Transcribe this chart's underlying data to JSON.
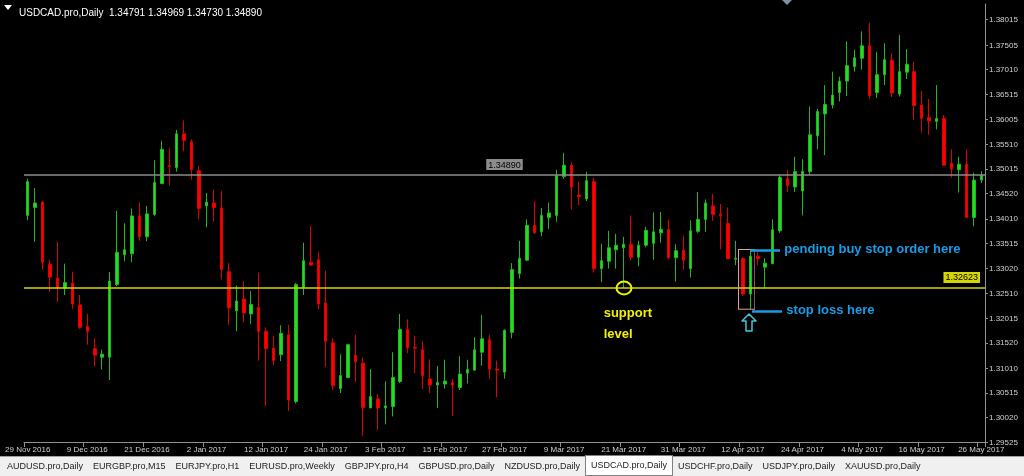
{
  "chart_data": {
    "type": "candlestick",
    "title": "USDCAD.pro,Daily  1.34791 1.34969 1.34730 1.34890",
    "categories": [
      "29 Nov 2016",
      null,
      null,
      null,
      null,
      null,
      null,
      null,
      "9 Dec 2016",
      null,
      null,
      null,
      null,
      null,
      null,
      null,
      "21 Dec 2016",
      null,
      null,
      null,
      null,
      null,
      null,
      null,
      "2 Jan 2017",
      null,
      null,
      null,
      null,
      null,
      null,
      null,
      "12 Jan 2017",
      null,
      null,
      null,
      null,
      null,
      null,
      null,
      "24 Jan 2017",
      null,
      null,
      null,
      null,
      null,
      null,
      null,
      "3 Feb 2017",
      null,
      null,
      null,
      null,
      null,
      null,
      null,
      "15 Feb 2017",
      null,
      null,
      null,
      null,
      null,
      null,
      null,
      "27 Feb 2017",
      null,
      null,
      null,
      null,
      null,
      null,
      null,
      "9 Mar 2017",
      null,
      null,
      null,
      null,
      null,
      null,
      null,
      "21 Mar 2017",
      null,
      null,
      null,
      null,
      null,
      null,
      null,
      "31 Mar 2017",
      null,
      null,
      null,
      null,
      null,
      null,
      null,
      "12 Apr 2017",
      null,
      null,
      null,
      null,
      null,
      null,
      null,
      "24 Apr 2017",
      null,
      null,
      null,
      null,
      null,
      null,
      null,
      "4 May 2017",
      null,
      null,
      null,
      null,
      null,
      null,
      null,
      "16 May 2017",
      null,
      null,
      null,
      null,
      null,
      null,
      null,
      "26 May 2017"
    ],
    "ohlc": [
      [
        1.3408,
        1.3482,
        1.3398,
        1.3476
      ],
      [
        1.3424,
        1.3463,
        1.3355,
        1.3433
      ],
      [
        1.3435,
        1.3437,
        1.3299,
        1.3314
      ],
      [
        1.331,
        1.3319,
        1.3254,
        1.3284
      ],
      [
        1.3282,
        1.3355,
        1.3234,
        1.3262
      ],
      [
        1.3262,
        1.3311,
        1.3248,
        1.3273
      ],
      [
        1.3272,
        1.3295,
        1.322,
        1.323
      ],
      [
        1.3228,
        1.3248,
        1.318,
        1.3183
      ],
      [
        1.3185,
        1.321,
        1.3148,
        1.3175
      ],
      [
        1.314,
        1.3161,
        1.3104,
        1.3127
      ],
      [
        1.3123,
        1.3138,
        1.3098,
        1.3129
      ],
      [
        1.3123,
        1.3294,
        1.3077,
        1.3276
      ],
      [
        1.3269,
        1.3417,
        1.3266,
        1.3334
      ],
      [
        1.3329,
        1.3392,
        1.3316,
        1.3339
      ],
      [
        1.3331,
        1.3422,
        1.3314,
        1.3407
      ],
      [
        1.3407,
        1.3434,
        1.3357,
        1.3365
      ],
      [
        1.3365,
        1.3427,
        1.3356,
        1.3411
      ],
      [
        1.341,
        1.3519,
        1.3407,
        1.3474
      ],
      [
        1.3472,
        1.3558,
        1.3471,
        1.3541
      ],
      [
        1.3508,
        1.3543,
        1.3468,
        1.3506
      ],
      [
        1.3504,
        1.358,
        1.3496,
        1.3572
      ],
      [
        1.3572,
        1.3599,
        1.3537,
        1.3559
      ],
      [
        1.3556,
        1.3561,
        1.348,
        1.35
      ],
      [
        1.3498,
        1.3507,
        1.34,
        1.3422
      ],
      [
        1.3427,
        1.3453,
        1.3384,
        1.3435
      ],
      [
        1.3433,
        1.346,
        1.3396,
        1.3424
      ],
      [
        1.3423,
        1.3457,
        1.3279,
        1.3299
      ],
      [
        1.3295,
        1.3312,
        1.3188,
        1.3222
      ],
      [
        1.3216,
        1.3267,
        1.3175,
        1.3236
      ],
      [
        1.324,
        1.3276,
        1.3193,
        1.3212
      ],
      [
        1.321,
        1.3256,
        1.319,
        1.3229
      ],
      [
        1.3223,
        1.3293,
        1.3116,
        1.3175
      ],
      [
        1.3175,
        1.3183,
        1.3025,
        1.314
      ],
      [
        1.3141,
        1.3166,
        1.3107,
        1.3116
      ],
      [
        1.3128,
        1.3187,
        1.3115,
        1.3171
      ],
      [
        1.3168,
        1.3188,
        1.3015,
        1.3037
      ],
      [
        1.3034,
        1.3272,
        1.303,
        1.3269
      ],
      [
        1.3263,
        1.3353,
        1.3248,
        1.3317
      ],
      [
        1.3314,
        1.3387,
        1.3308,
        1.3308
      ],
      [
        1.3319,
        1.3334,
        1.3219,
        1.323
      ],
      [
        1.3232,
        1.3297,
        1.3103,
        1.3155
      ],
      [
        1.3152,
        1.3161,
        1.3057,
        1.3066
      ],
      [
        1.306,
        1.3129,
        1.3051,
        1.3086
      ],
      [
        1.3082,
        1.315,
        1.3081,
        1.3148
      ],
      [
        1.3127,
        1.3168,
        1.3074,
        1.3114
      ],
      [
        1.3111,
        1.3123,
        1.2965,
        1.3022
      ],
      [
        1.3021,
        1.3099,
        1.3021,
        1.3044
      ],
      [
        1.3039,
        1.3049,
        1.2977,
        1.3021
      ],
      [
        1.3021,
        1.3074,
        1.2988,
        1.3025
      ],
      [
        1.3024,
        1.3133,
        1.3004,
        1.3082
      ],
      [
        1.3074,
        1.321,
        1.3071,
        1.3179
      ],
      [
        1.3179,
        1.3199,
        1.3131,
        1.3142
      ],
      [
        1.3143,
        1.3166,
        1.3091,
        1.3141
      ],
      [
        1.3138,
        1.3155,
        1.3059,
        1.3086
      ],
      [
        1.3079,
        1.3119,
        1.3051,
        1.3067
      ],
      [
        1.3067,
        1.3105,
        1.3021,
        1.3072
      ],
      [
        1.3069,
        1.3118,
        1.306,
        1.3075
      ],
      [
        1.3072,
        1.3079,
        1.3005,
        1.3067
      ],
      [
        1.3062,
        1.3125,
        1.3057,
        1.3089
      ],
      [
        1.3091,
        1.3118,
        1.307,
        1.3098
      ],
      [
        1.3097,
        1.3163,
        1.3096,
        1.3138
      ],
      [
        1.3133,
        1.3208,
        1.3106,
        1.316
      ],
      [
        1.3158,
        1.3168,
        1.3079,
        1.3099
      ],
      [
        1.3099,
        1.3116,
        1.3042,
        1.3097
      ],
      [
        1.3093,
        1.3179,
        1.308,
        1.3177
      ],
      [
        1.3173,
        1.3312,
        1.3161,
        1.3299
      ],
      [
        1.3291,
        1.3357,
        1.3281,
        1.3322
      ],
      [
        1.3318,
        1.34,
        1.3316,
        1.3388
      ],
      [
        1.3388,
        1.3437,
        1.3371,
        1.3373
      ],
      [
        1.3375,
        1.3423,
        1.3366,
        1.3408
      ],
      [
        1.3404,
        1.3434,
        1.3381,
        1.3413
      ],
      [
        1.3408,
        1.35,
        1.3395,
        1.3488
      ],
      [
        1.3486,
        1.3534,
        1.3482,
        1.3509
      ],
      [
        1.3509,
        1.3515,
        1.342,
        1.3465
      ],
      [
        1.3449,
        1.3476,
        1.3429,
        1.3446
      ],
      [
        1.3441,
        1.3496,
        1.3437,
        1.3478
      ],
      [
        1.3476,
        1.3484,
        1.3293,
        1.3301
      ],
      [
        1.3301,
        1.3351,
        1.3274,
        1.3317
      ],
      [
        1.3316,
        1.3377,
        1.3301,
        1.3343
      ],
      [
        1.3339,
        1.3371,
        1.3301,
        1.3348
      ],
      [
        1.3343,
        1.3365,
        1.3262,
        1.335
      ],
      [
        1.335,
        1.3408,
        1.3318,
        1.3324
      ],
      [
        1.3324,
        1.3357,
        1.3306,
        1.3348
      ],
      [
        1.3348,
        1.3385,
        1.3344,
        1.3378
      ],
      [
        1.3352,
        1.3414,
        1.3319,
        1.3375
      ],
      [
        1.3373,
        1.3415,
        1.3353,
        1.338
      ],
      [
        1.338,
        1.34,
        1.332,
        1.3323
      ],
      [
        1.3323,
        1.335,
        1.3275,
        1.3337
      ],
      [
        1.3338,
        1.3367,
        1.3299,
        1.3318
      ],
      [
        1.3301,
        1.3398,
        1.3283,
        1.3377
      ],
      [
        1.3376,
        1.3455,
        1.3373,
        1.34
      ],
      [
        1.34,
        1.344,
        1.3375,
        1.3433
      ],
      [
        1.3427,
        1.3451,
        1.3397,
        1.341
      ],
      [
        1.3411,
        1.3431,
        1.334,
        1.3408
      ],
      [
        1.3392,
        1.3424,
        1.332,
        1.3321
      ],
      [
        1.332,
        1.3357,
        1.3308,
        1.3322
      ],
      [
        1.3321,
        1.3324,
        1.3246,
        1.325
      ],
      [
        1.325,
        1.3338,
        1.322,
        1.3326
      ],
      [
        1.3326,
        1.3338,
        1.3308,
        1.3321
      ],
      [
        1.3304,
        1.3322,
        1.3261,
        1.3312
      ],
      [
        1.3311,
        1.34,
        1.331,
        1.3379
      ],
      [
        1.3377,
        1.349,
        1.3373,
        1.3484
      ],
      [
        1.3482,
        1.3499,
        1.3455,
        1.3468
      ],
      [
        1.3465,
        1.3526,
        1.3455,
        1.3496
      ],
      [
        1.3457,
        1.3521,
        1.3408,
        1.3497
      ],
      [
        1.3496,
        1.3627,
        1.349,
        1.357
      ],
      [
        1.3568,
        1.3622,
        1.3541,
        1.3617
      ],
      [
        1.3612,
        1.367,
        1.3529,
        1.3631
      ],
      [
        1.363,
        1.3697,
        1.3623,
        1.365
      ],
      [
        1.3655,
        1.3687,
        1.3637,
        1.3678
      ],
      [
        1.3678,
        1.3758,
        1.3648,
        1.3709
      ],
      [
        1.3707,
        1.3741,
        1.3697,
        1.3725
      ],
      [
        1.3724,
        1.3778,
        1.3701,
        1.3749
      ],
      [
        1.3749,
        1.3795,
        1.3642,
        1.3649
      ],
      [
        1.3655,
        1.3736,
        1.3644,
        1.3691
      ],
      [
        1.3691,
        1.3754,
        1.367,
        1.3721
      ],
      [
        1.372,
        1.3734,
        1.3646,
        1.3654
      ],
      [
        1.3652,
        1.3771,
        1.3647,
        1.3697
      ],
      [
        1.3696,
        1.3742,
        1.3682,
        1.3712
      ],
      [
        1.3697,
        1.3717,
        1.36,
        1.3629
      ],
      [
        1.363,
        1.3658,
        1.3575,
        1.3603
      ],
      [
        1.3605,
        1.3642,
        1.357,
        1.3598
      ],
      [
        1.3597,
        1.367,
        1.3581,
        1.3603
      ],
      [
        1.3603,
        1.361,
        1.3508,
        1.3509
      ],
      [
        1.3513,
        1.3541,
        1.3484,
        1.3501
      ],
      [
        1.35,
        1.3526,
        1.3454,
        1.3511
      ],
      [
        1.3511,
        1.3541,
        1.3404,
        1.3404
      ],
      [
        1.3404,
        1.3494,
        1.3386,
        1.3479
      ],
      [
        1.34791,
        1.34969,
        1.3473,
        1.3489
      ]
    ],
    "ylim": [
      1.29525,
      1.3833
    ],
    "yticks": [
      1.29525,
      {
        "value": 1.3002,
        "label": "1.30020"
      },
      1.30515,
      {
        "value": 1.3101,
        "label": "1.31010"
      },
      {
        "value": 1.3152,
        "label": "1.31520"
      },
      1.32015,
      {
        "value": 1.3251,
        "label": "1.32510"
      },
      {
        "value": 1.3302,
        "label": "1.33020"
      },
      1.33515,
      {
        "value": 1.3401,
        "label": "1.34010"
      },
      {
        "value": 1.3452,
        "label": "1.34520"
      },
      1.35015,
      {
        "value": 1.3551,
        "label": "1.35510"
      },
      1.36005,
      1.36515,
      {
        "value": 1.3701,
        "label": "1.37010"
      },
      1.37505,
      1.38015
    ],
    "ref_lines": [
      {
        "axis": "y",
        "value": 1.3489,
        "label": "1.34890",
        "color": "#8c8c8c"
      },
      {
        "axis": "y",
        "value": 1.32623,
        "label": "1.32623",
        "color": "#d6d600"
      }
    ],
    "annotations": [
      {
        "text": "support level",
        "y": 1.32623
      },
      "pending buy stop order here",
      "stop loss here",
      "AUDUSD.pro,Daily",
      "EURGBP.pro,M15",
      "EURJPY.pro,H1",
      "EURUSD.pro,Weekly",
      "GBPJPY.pro,H4",
      "GBPUSD.pro,Daily",
      "NZDUSD.pro,Daily",
      "USDCAD.pro,Daily",
      "USDCHF.pro,Daily",
      "USDJPY.pro,Daily",
      "XAUUSD.pro,Daily"
    ]
  }
}
